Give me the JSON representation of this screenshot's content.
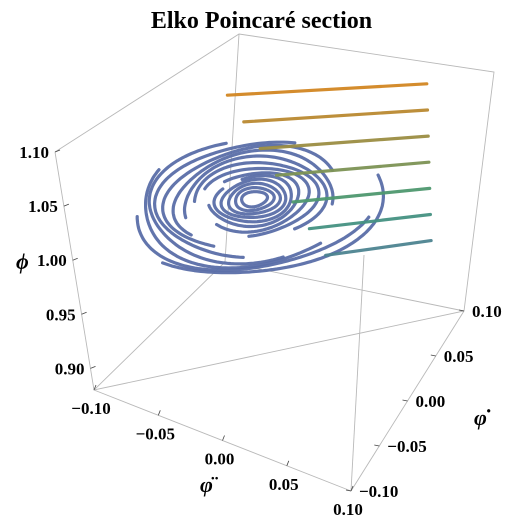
{
  "chart_data": {
    "type": "line",
    "title": "Elko Poincaré section",
    "xlabel": "φ̈",
    "ylabel": "φ̇",
    "zlabel": "ϕ",
    "x_ticks": [
      "−0.10",
      "−0.05",
      "0.00",
      "0.05",
      "0.10"
    ],
    "y_ticks": [
      "−0.10",
      "−0.05",
      "0.00",
      "0.05",
      "0.10"
    ],
    "z_ticks": [
      "0.90",
      "0.95",
      "1.00",
      "1.05",
      "1.10"
    ],
    "xlim": [
      -0.1,
      0.1
    ],
    "ylim": [
      -0.1,
      0.1
    ],
    "zlim": [
      0.88,
      1.1
    ],
    "colors": {
      "spiral": "#5a6ea8",
      "gradient_low": "#5a6ea8",
      "gradient_mid": "#3f9a78",
      "gradient_high": "#d8851e",
      "box": "#b9b9b9"
    },
    "center": {
      "x": 0.0,
      "y": 0.0,
      "z": 1.02
    },
    "spiral_curves": [
      {
        "r": 0.012,
        "turns": 1.0
      },
      {
        "r": 0.018,
        "turns": 1.0
      },
      {
        "r": 0.024,
        "turns": 1.0
      },
      {
        "r": 0.03,
        "turns": 1.0
      },
      {
        "r": 0.036,
        "turns": 0.9
      },
      {
        "r": 0.042,
        "turns": 0.85
      },
      {
        "r": 0.05,
        "turns": 0.8
      },
      {
        "r": 0.058,
        "turns": 0.75
      },
      {
        "r": 0.066,
        "turns": 0.7
      },
      {
        "r": 0.074,
        "turns": 0.65
      },
      {
        "r": 0.082,
        "turns": 0.6
      },
      {
        "r": 0.09,
        "turns": 0.55
      },
      {
        "r": 0.098,
        "turns": 0.5
      },
      {
        "r": 0.105,
        "turns": 0.45
      },
      {
        "r": 0.112,
        "turns": 0.42
      },
      {
        "r": 0.12,
        "turns": 0.4
      }
    ],
    "straight_curves": [
      {
        "z": 1.09,
        "x_start": -0.02,
        "x_end": 0.1,
        "y_start": 0.02,
        "y_end": 0.1,
        "value": 0.98
      },
      {
        "z": 1.07,
        "x_start": -0.01,
        "x_end": 0.1,
        "y_start": 0.02,
        "y_end": 0.095,
        "value": 0.9
      },
      {
        "z": 1.05,
        "x_start": 0.0,
        "x_end": 0.1,
        "y_start": 0.02,
        "y_end": 0.09,
        "value": 0.8
      },
      {
        "z": 1.03,
        "x_start": 0.01,
        "x_end": 0.1,
        "y_start": 0.02,
        "y_end": 0.085,
        "value": 0.7
      },
      {
        "z": 1.01,
        "x_start": 0.02,
        "x_end": 0.1,
        "y_start": 0.02,
        "y_end": 0.08,
        "value": 0.55
      },
      {
        "z": 0.99,
        "x_start": 0.03,
        "x_end": 0.1,
        "y_start": 0.02,
        "y_end": 0.075,
        "value": 0.4
      },
      {
        "z": 0.97,
        "x_start": 0.04,
        "x_end": 0.1,
        "y_start": 0.02,
        "y_end": 0.07,
        "value": 0.25
      }
    ]
  }
}
